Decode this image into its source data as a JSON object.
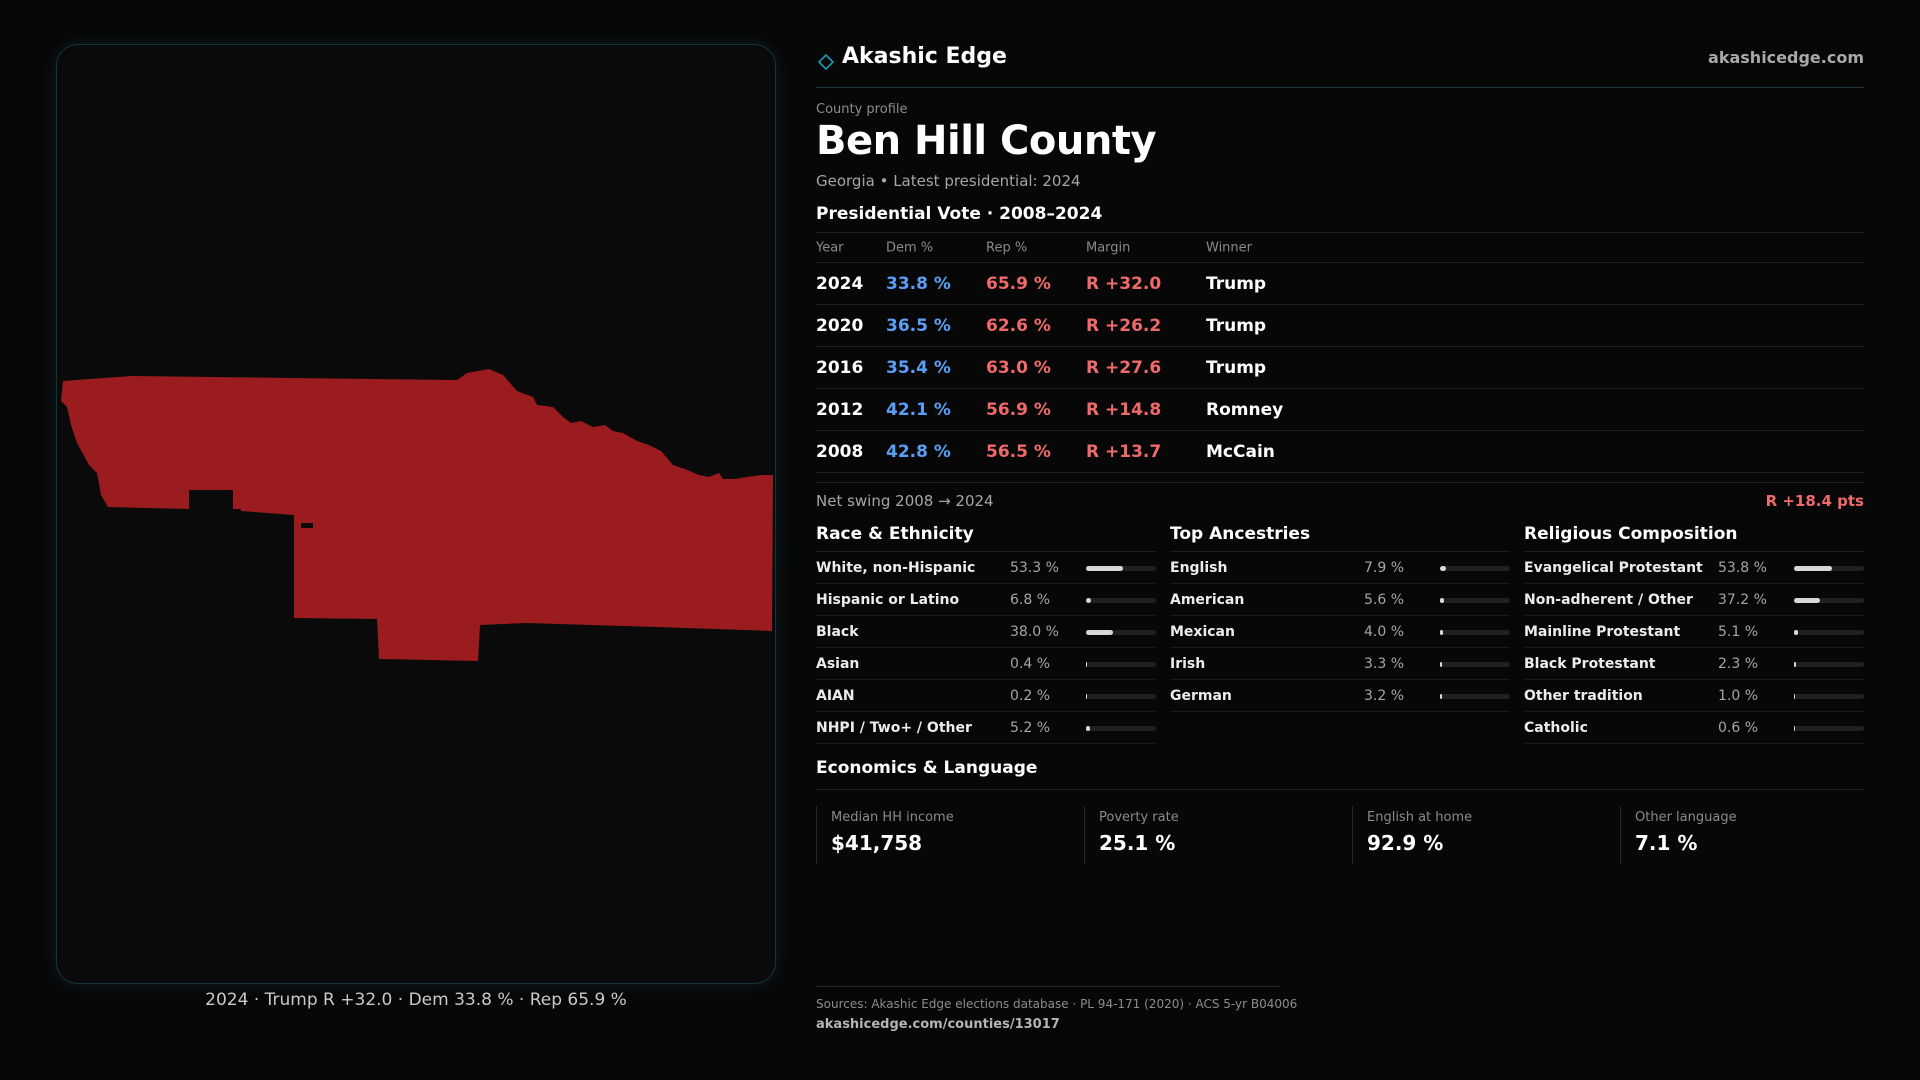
{
  "brand": {
    "name": "Akashic Edge",
    "url": "akashicedge.com",
    "accent": "#1d9ab0",
    "icon": "diamond-icon"
  },
  "profile": {
    "eyebrow": "County profile",
    "county": "Ben Hill County",
    "subline": "Georgia • Latest presidential: 2024"
  },
  "map": {
    "caption": "2024 · Trump R +32.0 · Dem 33.8 % · Rep 65.9 %",
    "fill": "#9b1c1f"
  },
  "vote": {
    "heading": "Presidential Vote · 2008–2024",
    "columns": {
      "year": "Year",
      "dem": "Dem %",
      "rep": "Rep %",
      "margin": "Margin",
      "winner": "Winner"
    },
    "rows": [
      {
        "year": "2024",
        "dem": "33.8 %",
        "rep": "65.9 %",
        "margin": "R +32.0",
        "winner": "Trump"
      },
      {
        "year": "2020",
        "dem": "36.5 %",
        "rep": "62.6 %",
        "margin": "R +26.2",
        "winner": "Trump"
      },
      {
        "year": "2016",
        "dem": "35.4 %",
        "rep": "63.0 %",
        "margin": "R +27.6",
        "winner": "Trump"
      },
      {
        "year": "2012",
        "dem": "42.1 %",
        "rep": "56.9 %",
        "margin": "R +14.8",
        "winner": "Romney"
      },
      {
        "year": "2008",
        "dem": "42.8 %",
        "rep": "56.5 %",
        "margin": "R +13.7",
        "winner": "McCain"
      }
    ],
    "swing_label": "Net swing 2008 → 2024",
    "swing_value": "R +18.4 pts",
    "colors": {
      "dem": "#5a9ef5",
      "rep": "#f06a6a"
    }
  },
  "race": {
    "title": "Race & Ethnicity",
    "items": [
      {
        "label": "White, non-Hispanic",
        "value": "53.3 %",
        "pct": 53.3
      },
      {
        "label": "Hispanic or Latino",
        "value": "6.8 %",
        "pct": 6.8
      },
      {
        "label": "Black",
        "value": "38.0 %",
        "pct": 38.0
      },
      {
        "label": "Asian",
        "value": "0.4 %",
        "pct": 0.4
      },
      {
        "label": "AIAN",
        "value": "0.2 %",
        "pct": 0.2
      },
      {
        "label": "NHPI / Two+ / Other",
        "value": "5.2 %",
        "pct": 5.2
      }
    ]
  },
  "ancestry": {
    "title": "Top Ancestries",
    "items": [
      {
        "label": "English",
        "value": "7.9 %",
        "pct": 7.9
      },
      {
        "label": "American",
        "value": "5.6 %",
        "pct": 5.6
      },
      {
        "label": "Mexican",
        "value": "4.0 %",
        "pct": 4.0
      },
      {
        "label": "Irish",
        "value": "3.3 %",
        "pct": 3.3
      },
      {
        "label": "German",
        "value": "3.2 %",
        "pct": 3.2
      }
    ]
  },
  "religion": {
    "title": "Religious Composition",
    "items": [
      {
        "label": "Evangelical Protestant",
        "value": "53.8 %",
        "pct": 53.8
      },
      {
        "label": "Non-adherent / Other",
        "value": "37.2 %",
        "pct": 37.2
      },
      {
        "label": "Mainline Protestant",
        "value": "5.1 %",
        "pct": 5.1
      },
      {
        "label": "Black Protestant",
        "value": "2.3 %",
        "pct": 2.3
      },
      {
        "label": "Other tradition",
        "value": "1.0 %",
        "pct": 1.0
      },
      {
        "label": "Catholic",
        "value": "0.6 %",
        "pct": 0.6
      }
    ]
  },
  "economics": {
    "heading": "Economics & Language",
    "cards": [
      {
        "label": "Median HH income",
        "value": "$41,758"
      },
      {
        "label": "Poverty rate",
        "value": "25.1 %"
      },
      {
        "label": "English at home",
        "value": "92.9 %"
      },
      {
        "label": "Other language",
        "value": "7.1 %"
      }
    ]
  },
  "footer": {
    "sources": "Sources: Akashic Edge elections database · PL 94-171 (2020) · ACS 5-yr B04006",
    "url": "akashicedge.com/counties/13017"
  }
}
